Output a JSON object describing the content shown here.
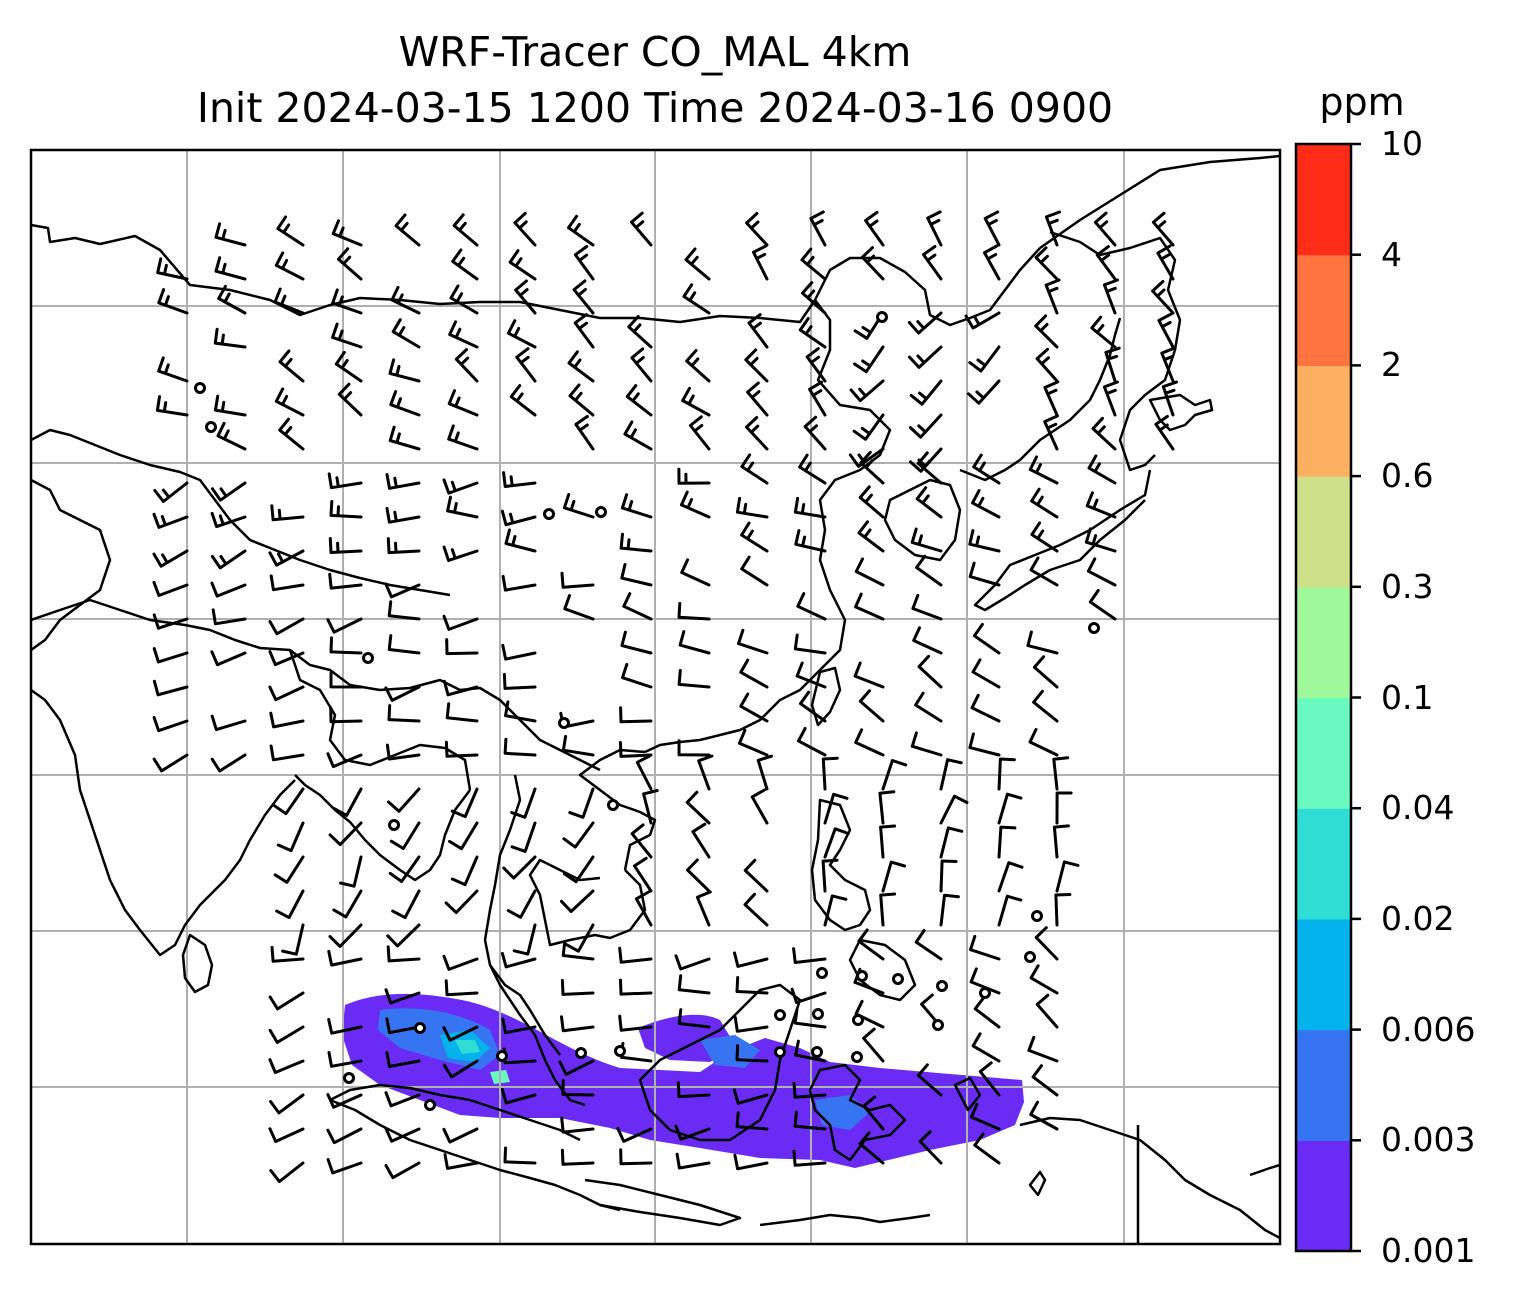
{
  "title": {
    "line1": "WRF-Tracer CO_MAL 4km",
    "line2": "Init 2024-03-15 1200 Time 2024-03-16 0900"
  },
  "colorbar": {
    "unit": "ppm",
    "levels": [
      "0.001",
      "0.003",
      "0.006",
      "0.02",
      "0.04",
      "0.1",
      "0.3",
      "0.6",
      "2",
      "4",
      "10"
    ],
    "colors": [
      "#6a2cf5",
      "#3674f1",
      "#05b3ec",
      "#30ddd4",
      "#69f8be",
      "#9ff899",
      "#cfe08a",
      "#fdaf61",
      "#ff7440",
      "#ff2c17"
    ]
  },
  "map": {
    "frame_color": "#000000",
    "gridline_color": "#b0b0b0",
    "coastline_color": "#000000",
    "tracer_field": "CO_MAL",
    "overlay": "wind barbs"
  }
}
